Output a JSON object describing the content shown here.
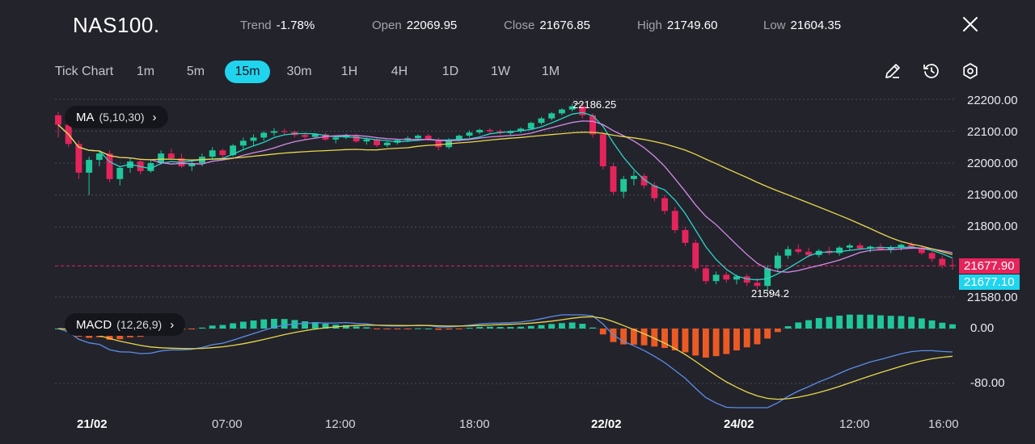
{
  "header": {
    "symbol": "NAS100.",
    "stats": [
      {
        "label": "Trend",
        "value": "-1.78%"
      },
      {
        "label": "Open",
        "value": "22069.95"
      },
      {
        "label": "Close",
        "value": "21676.85"
      },
      {
        "label": "High",
        "value": "21749.60"
      },
      {
        "label": "Low",
        "value": "21604.35"
      }
    ]
  },
  "timeframes": [
    "Tick Chart",
    "1m",
    "5m",
    "15m",
    "30m",
    "1H",
    "4H",
    "1D",
    "1W",
    "1M"
  ],
  "active_timeframe": "15m",
  "tools": [
    "pencil-icon",
    "history-icon",
    "settings-icon"
  ],
  "indicators": {
    "ma": {
      "label": "MA",
      "params": "(5,10,30)"
    },
    "macd": {
      "label": "MACD",
      "params": "(12,26,9)"
    }
  },
  "price_axis": [
    "22200.00",
    "22100.00",
    "22000.00",
    "21900.00",
    "21800.00",
    "21677.90",
    "21580.00"
  ],
  "macd_axis": [
    "0.00",
    "-80.00"
  ],
  "time_axis": [
    {
      "label": "21/02",
      "bold": true
    },
    {
      "label": "07:00",
      "bold": false
    },
    {
      "label": "12:00",
      "bold": false
    },
    {
      "label": "18:00",
      "bold": false
    },
    {
      "label": "22/02",
      "bold": true
    },
    {
      "label": "24/02",
      "bold": true
    },
    {
      "label": "12:00",
      "bold": false
    },
    {
      "label": "16:00",
      "bold": false
    }
  ],
  "price_tags": {
    "bid": "21677.90",
    "ask": "21677.10"
  },
  "annotations": {
    "high": "22186.25",
    "low": "21594.2"
  },
  "colors": {
    "up": "#1fc79a",
    "down": "#e5245b",
    "ma5": "#2ad4c8",
    "ma10": "#d58ae8",
    "ma30": "#e8d84a",
    "macd_line": "#5a8ee6",
    "signal_line": "#e8d84a",
    "hist_up": "#1fc79a",
    "hist_down": "#ec5a24",
    "accent": "#21d4ee"
  },
  "chart_data": {
    "type": "candlestick",
    "price_range": [
      21580,
      22220
    ],
    "candles": [
      [
        22150,
        22160,
        22080,
        22120
      ],
      [
        22120,
        22130,
        22050,
        22060
      ],
      [
        22060,
        22070,
        21950,
        21970
      ],
      [
        21970,
        22020,
        21900,
        22010
      ],
      [
        22010,
        22040,
        21990,
        22030
      ],
      [
        22030,
        22040,
        21940,
        21950
      ],
      [
        21950,
        21990,
        21930,
        21985
      ],
      [
        21985,
        22015,
        21970,
        22005
      ],
      [
        22005,
        22010,
        21965,
        21975
      ],
      [
        21975,
        22010,
        21970,
        22000
      ],
      [
        22000,
        22040,
        21995,
        22030
      ],
      [
        22030,
        22045,
        22010,
        22015
      ],
      [
        22015,
        22030,
        21985,
        21990
      ],
      [
        21990,
        22005,
        21975,
        22000
      ],
      [
        22000,
        22030,
        21990,
        22020
      ],
      [
        22020,
        22050,
        22010,
        22040
      ],
      [
        22040,
        22045,
        22015,
        22025
      ],
      [
        22025,
        22060,
        22020,
        22055
      ],
      [
        22055,
        22080,
        22045,
        22070
      ],
      [
        22070,
        22090,
        22055,
        22080
      ],
      [
        22080,
        22100,
        22070,
        22095
      ],
      [
        22095,
        22110,
        22085,
        22100
      ],
      [
        22100,
        22108,
        22090,
        22098
      ],
      [
        22098,
        22102,
        22080,
        22088
      ],
      [
        22088,
        22096,
        22075,
        22082
      ],
      [
        22082,
        22094,
        22076,
        22090
      ],
      [
        22090,
        22095,
        22070,
        22074
      ],
      [
        22074,
        22086,
        22062,
        22080
      ],
      [
        22080,
        22092,
        22075,
        22088
      ],
      [
        22088,
        22092,
        22064,
        22068
      ],
      [
        22068,
        22080,
        22058,
        22074
      ],
      [
        22074,
        22080,
        22050,
        22056
      ],
      [
        22056,
        22068,
        22050,
        22064
      ],
      [
        22064,
        22076,
        22058,
        22072
      ],
      [
        22072,
        22084,
        22066,
        22078
      ],
      [
        22078,
        22090,
        22070,
        22086
      ],
      [
        22086,
        22092,
        22070,
        22074
      ],
      [
        22074,
        22080,
        22040,
        22050
      ],
      [
        22050,
        22078,
        22044,
        22074
      ],
      [
        22074,
        22090,
        22068,
        22086
      ],
      [
        22086,
        22102,
        22080,
        22096
      ],
      [
        22096,
        22108,
        22090,
        22104
      ],
      [
        22104,
        22110,
        22094,
        22100
      ],
      [
        22100,
        22106,
        22088,
        22094
      ],
      [
        22094,
        22104,
        22088,
        22100
      ],
      [
        22100,
        22112,
        22094,
        22108
      ],
      [
        22108,
        22130,
        22104,
        22126
      ],
      [
        22126,
        22145,
        22120,
        22140
      ],
      [
        22140,
        22160,
        22134,
        22156
      ],
      [
        22156,
        22172,
        22150,
        22168
      ],
      [
        22168,
        22186,
        22162,
        22178
      ],
      [
        22178,
        22182,
        22140,
        22150
      ],
      [
        22150,
        22156,
        22080,
        22090
      ],
      [
        22090,
        22096,
        21980,
        21990
      ],
      [
        21990,
        22000,
        21900,
        21910
      ],
      [
        21910,
        21960,
        21890,
        21950
      ],
      [
        21950,
        21975,
        21930,
        21960
      ],
      [
        21960,
        21968,
        21920,
        21930
      ],
      [
        21930,
        21940,
        21880,
        21890
      ],
      [
        21890,
        21900,
        21840,
        21850
      ],
      [
        21850,
        21862,
        21780,
        21790
      ],
      [
        21790,
        21800,
        21740,
        21750
      ],
      [
        21750,
        21760,
        21660,
        21670
      ],
      [
        21670,
        21680,
        21620,
        21630
      ],
      [
        21630,
        21660,
        21620,
        21650
      ],
      [
        21650,
        21660,
        21625,
        21635
      ],
      [
        21635,
        21650,
        21620,
        21645
      ],
      [
        21645,
        21652,
        21615,
        21625
      ],
      [
        21625,
        21640,
        21605,
        21615
      ],
      [
        21615,
        21680,
        21594,
        21670
      ],
      [
        21670,
        21720,
        21660,
        21710
      ],
      [
        21710,
        21740,
        21700,
        21730
      ],
      [
        21730,
        21745,
        21715,
        21722
      ],
      [
        21722,
        21735,
        21705,
        21712
      ],
      [
        21712,
        21730,
        21705,
        21725
      ],
      [
        21725,
        21738,
        21712,
        21718
      ],
      [
        21718,
        21740,
        21710,
        21735
      ],
      [
        21735,
        21748,
        21725,
        21742
      ],
      [
        21742,
        21750,
        21728,
        21732
      ],
      [
        21732,
        21742,
        21720,
        21738
      ],
      [
        21738,
        21748,
        21725,
        21730
      ],
      [
        21730,
        21742,
        21718,
        21735
      ],
      [
        21735,
        21748,
        21726,
        21744
      ],
      [
        21744,
        21752,
        21730,
        21736
      ],
      [
        21736,
        21742,
        21712,
        21718
      ],
      [
        21718,
        21726,
        21690,
        21700
      ],
      [
        21700,
        21710,
        21670,
        21680
      ],
      [
        21680,
        21700,
        21665,
        21678
      ]
    ],
    "annotations": {
      "high": 22186.25,
      "low": 21594.2
    },
    "current_price": 21677.9,
    "macd": {
      "range": [
        -110,
        10
      ],
      "ticks": [
        0,
        -80
      ]
    }
  }
}
